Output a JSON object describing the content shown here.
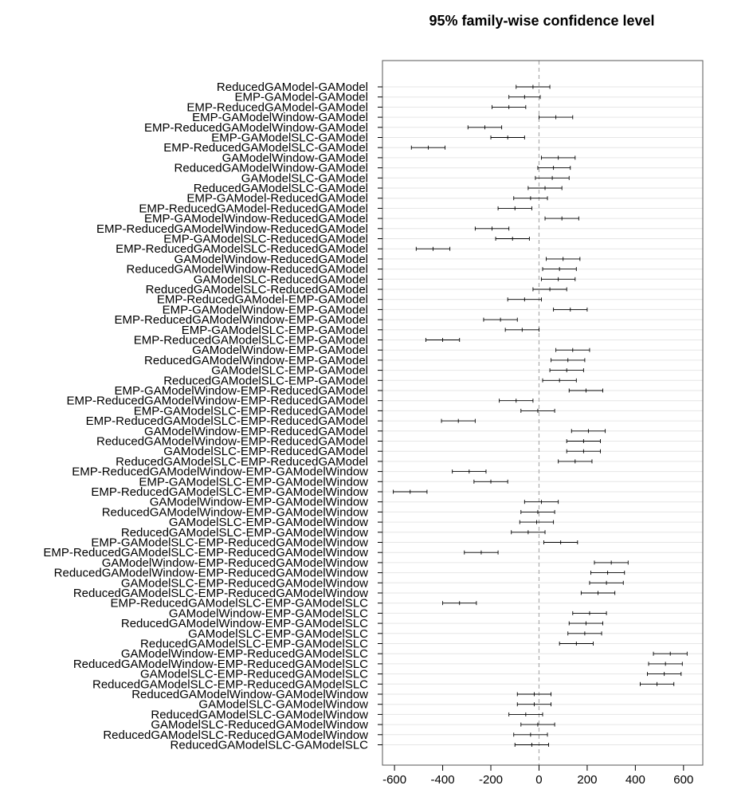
{
  "chart_data": {
    "type": "interval",
    "title": "95% family-wise confidence level",
    "xlabel": "",
    "ylabel": "",
    "xlim": [
      -650,
      680
    ],
    "x_ticks": [
      -600,
      -400,
      -200,
      0,
      200,
      400,
      600
    ],
    "x_tick_labels": [
      "-600",
      "-400",
      "-200",
      "0",
      "200",
      "400",
      "600"
    ],
    "reference_line": 0,
    "grid": true,
    "categories": [
      "ReducedGAModel-GAModel",
      "EMP-GAModel-GAModel",
      "EMP-ReducedGAModel-GAModel",
      "EMP-GAModelWindow-GAModel",
      "EMP-ReducedGAModelWindow-GAModel",
      "EMP-GAModelSLC-GAModel",
      "EMP-ReducedGAModelSLC-GAModel",
      "GAModelWindow-GAModel",
      "ReducedGAModelWindow-GAModel",
      "GAModelSLC-GAModel",
      "ReducedGAModelSLC-GAModel",
      "EMP-GAModel-ReducedGAModel",
      "EMP-ReducedGAModel-ReducedGAModel",
      "EMP-GAModelWindow-ReducedGAModel",
      "EMP-ReducedGAModelWindow-ReducedGAModel",
      "EMP-GAModelSLC-ReducedGAModel",
      "EMP-ReducedGAModelSLC-ReducedGAModel",
      "GAModelWindow-ReducedGAModel",
      "ReducedGAModelWindow-ReducedGAModel",
      "GAModelSLC-ReducedGAModel",
      "ReducedGAModelSLC-ReducedGAModel",
      "EMP-ReducedGAModel-EMP-GAModel",
      "EMP-GAModelWindow-EMP-GAModel",
      "EMP-ReducedGAModelWindow-EMP-GAModel",
      "EMP-GAModelSLC-EMP-GAModel",
      "EMP-ReducedGAModelSLC-EMP-GAModel",
      "GAModelWindow-EMP-GAModel",
      "ReducedGAModelWindow-EMP-GAModel",
      "GAModelSLC-EMP-GAModel",
      "ReducedGAModelSLC-EMP-GAModel",
      "EMP-GAModelWindow-EMP-ReducedGAModel",
      "EMP-ReducedGAModelWindow-EMP-ReducedGAModel",
      "EMP-GAModelSLC-EMP-ReducedGAModel",
      "EMP-ReducedGAModelSLC-EMP-ReducedGAModel",
      "GAModelWindow-EMP-ReducedGAModel",
      "ReducedGAModelWindow-EMP-ReducedGAModel",
      "GAModelSLC-EMP-ReducedGAModel",
      "ReducedGAModelSLC-EMP-ReducedGAModel",
      "EMP-ReducedGAModelWindow-EMP-GAModelWindow",
      "EMP-GAModelSLC-EMP-GAModelWindow",
      "EMP-ReducedGAModelSLC-EMP-GAModelWindow",
      "GAModelWindow-EMP-GAModelWindow",
      "ReducedGAModelWindow-EMP-GAModelWindow",
      "GAModelSLC-EMP-GAModelWindow",
      "ReducedGAModelSLC-EMP-GAModelWindow",
      "EMP-GAModelSLC-EMP-ReducedGAModelWindow",
      "EMP-ReducedGAModelSLC-EMP-ReducedGAModelWindow",
      "GAModelWindow-EMP-ReducedGAModelWindow",
      "ReducedGAModelWindow-EMP-ReducedGAModelWindow",
      "GAModelSLC-EMP-ReducedGAModelWindow",
      "ReducedGAModelSLC-EMP-ReducedGAModelWindow",
      "EMP-ReducedGAModelSLC-EMP-GAModelSLC",
      "GAModelWindow-EMP-GAModelSLC",
      "ReducedGAModelWindow-EMP-GAModelSLC",
      "GAModelSLC-EMP-GAModelSLC",
      "ReducedGAModelSLC-EMP-GAModelSLC",
      "GAModelWindow-EMP-ReducedGAModelSLC",
      "ReducedGAModelWindow-EMP-ReducedGAModelSLC",
      "GAModelSLC-EMP-ReducedGAModelSLC",
      "ReducedGAModelSLC-EMP-ReducedGAModelSLC",
      "ReducedGAModelWindow-GAModelWindow",
      "GAModelSLC-GAModelWindow",
      "ReducedGAModelSLC-GAModelWindow",
      "GAModelSLC-ReducedGAModelWindow",
      "ReducedGAModelSLC-ReducedGAModelWindow",
      "ReducedGAModelSLC-GAModelSLC"
    ],
    "estimates": [
      -25,
      -60,
      -125,
      70,
      -225,
      -130,
      -460,
      80,
      60,
      55,
      25,
      -35,
      -100,
      95,
      -195,
      -110,
      -440,
      100,
      85,
      80,
      45,
      -60,
      130,
      -160,
      -70,
      -400,
      140,
      120,
      115,
      85,
      195,
      -95,
      -5,
      -335,
      205,
      185,
      185,
      150,
      -290,
      -200,
      -535,
      10,
      -5,
      -10,
      -45,
      90,
      -240,
      300,
      285,
      280,
      245,
      -330,
      210,
      195,
      190,
      155,
      545,
      525,
      520,
      490,
      -20,
      -20,
      -55,
      -5,
      -35,
      -30
    ],
    "lower": [
      -95,
      -125,
      -195,
      0,
      -295,
      -200,
      -530,
      10,
      -5,
      -15,
      -45,
      -105,
      -170,
      25,
      -265,
      -180,
      -510,
      30,
      15,
      10,
      -25,
      -130,
      60,
      -230,
      -140,
      -470,
      70,
      50,
      45,
      15,
      125,
      -165,
      -75,
      -405,
      135,
      115,
      115,
      80,
      -360,
      -270,
      -605,
      -60,
      -75,
      -80,
      -115,
      20,
      -310,
      230,
      215,
      210,
      175,
      -400,
      140,
      125,
      120,
      85,
      475,
      455,
      450,
      420,
      -90,
      -90,
      -125,
      -75,
      -105,
      -100
    ],
    "upper": [
      45,
      5,
      -55,
      140,
      -155,
      -60,
      -390,
      150,
      130,
      125,
      95,
      35,
      -30,
      165,
      -125,
      -40,
      -370,
      170,
      155,
      150,
      115,
      10,
      200,
      -90,
      0,
      -330,
      210,
      190,
      185,
      155,
      265,
      -25,
      65,
      -265,
      275,
      255,
      255,
      220,
      -220,
      -130,
      -465,
      80,
      65,
      60,
      25,
      160,
      -170,
      370,
      355,
      350,
      315,
      -260,
      280,
      265,
      260,
      225,
      615,
      595,
      590,
      560,
      50,
      50,
      15,
      65,
      35,
      40
    ]
  }
}
